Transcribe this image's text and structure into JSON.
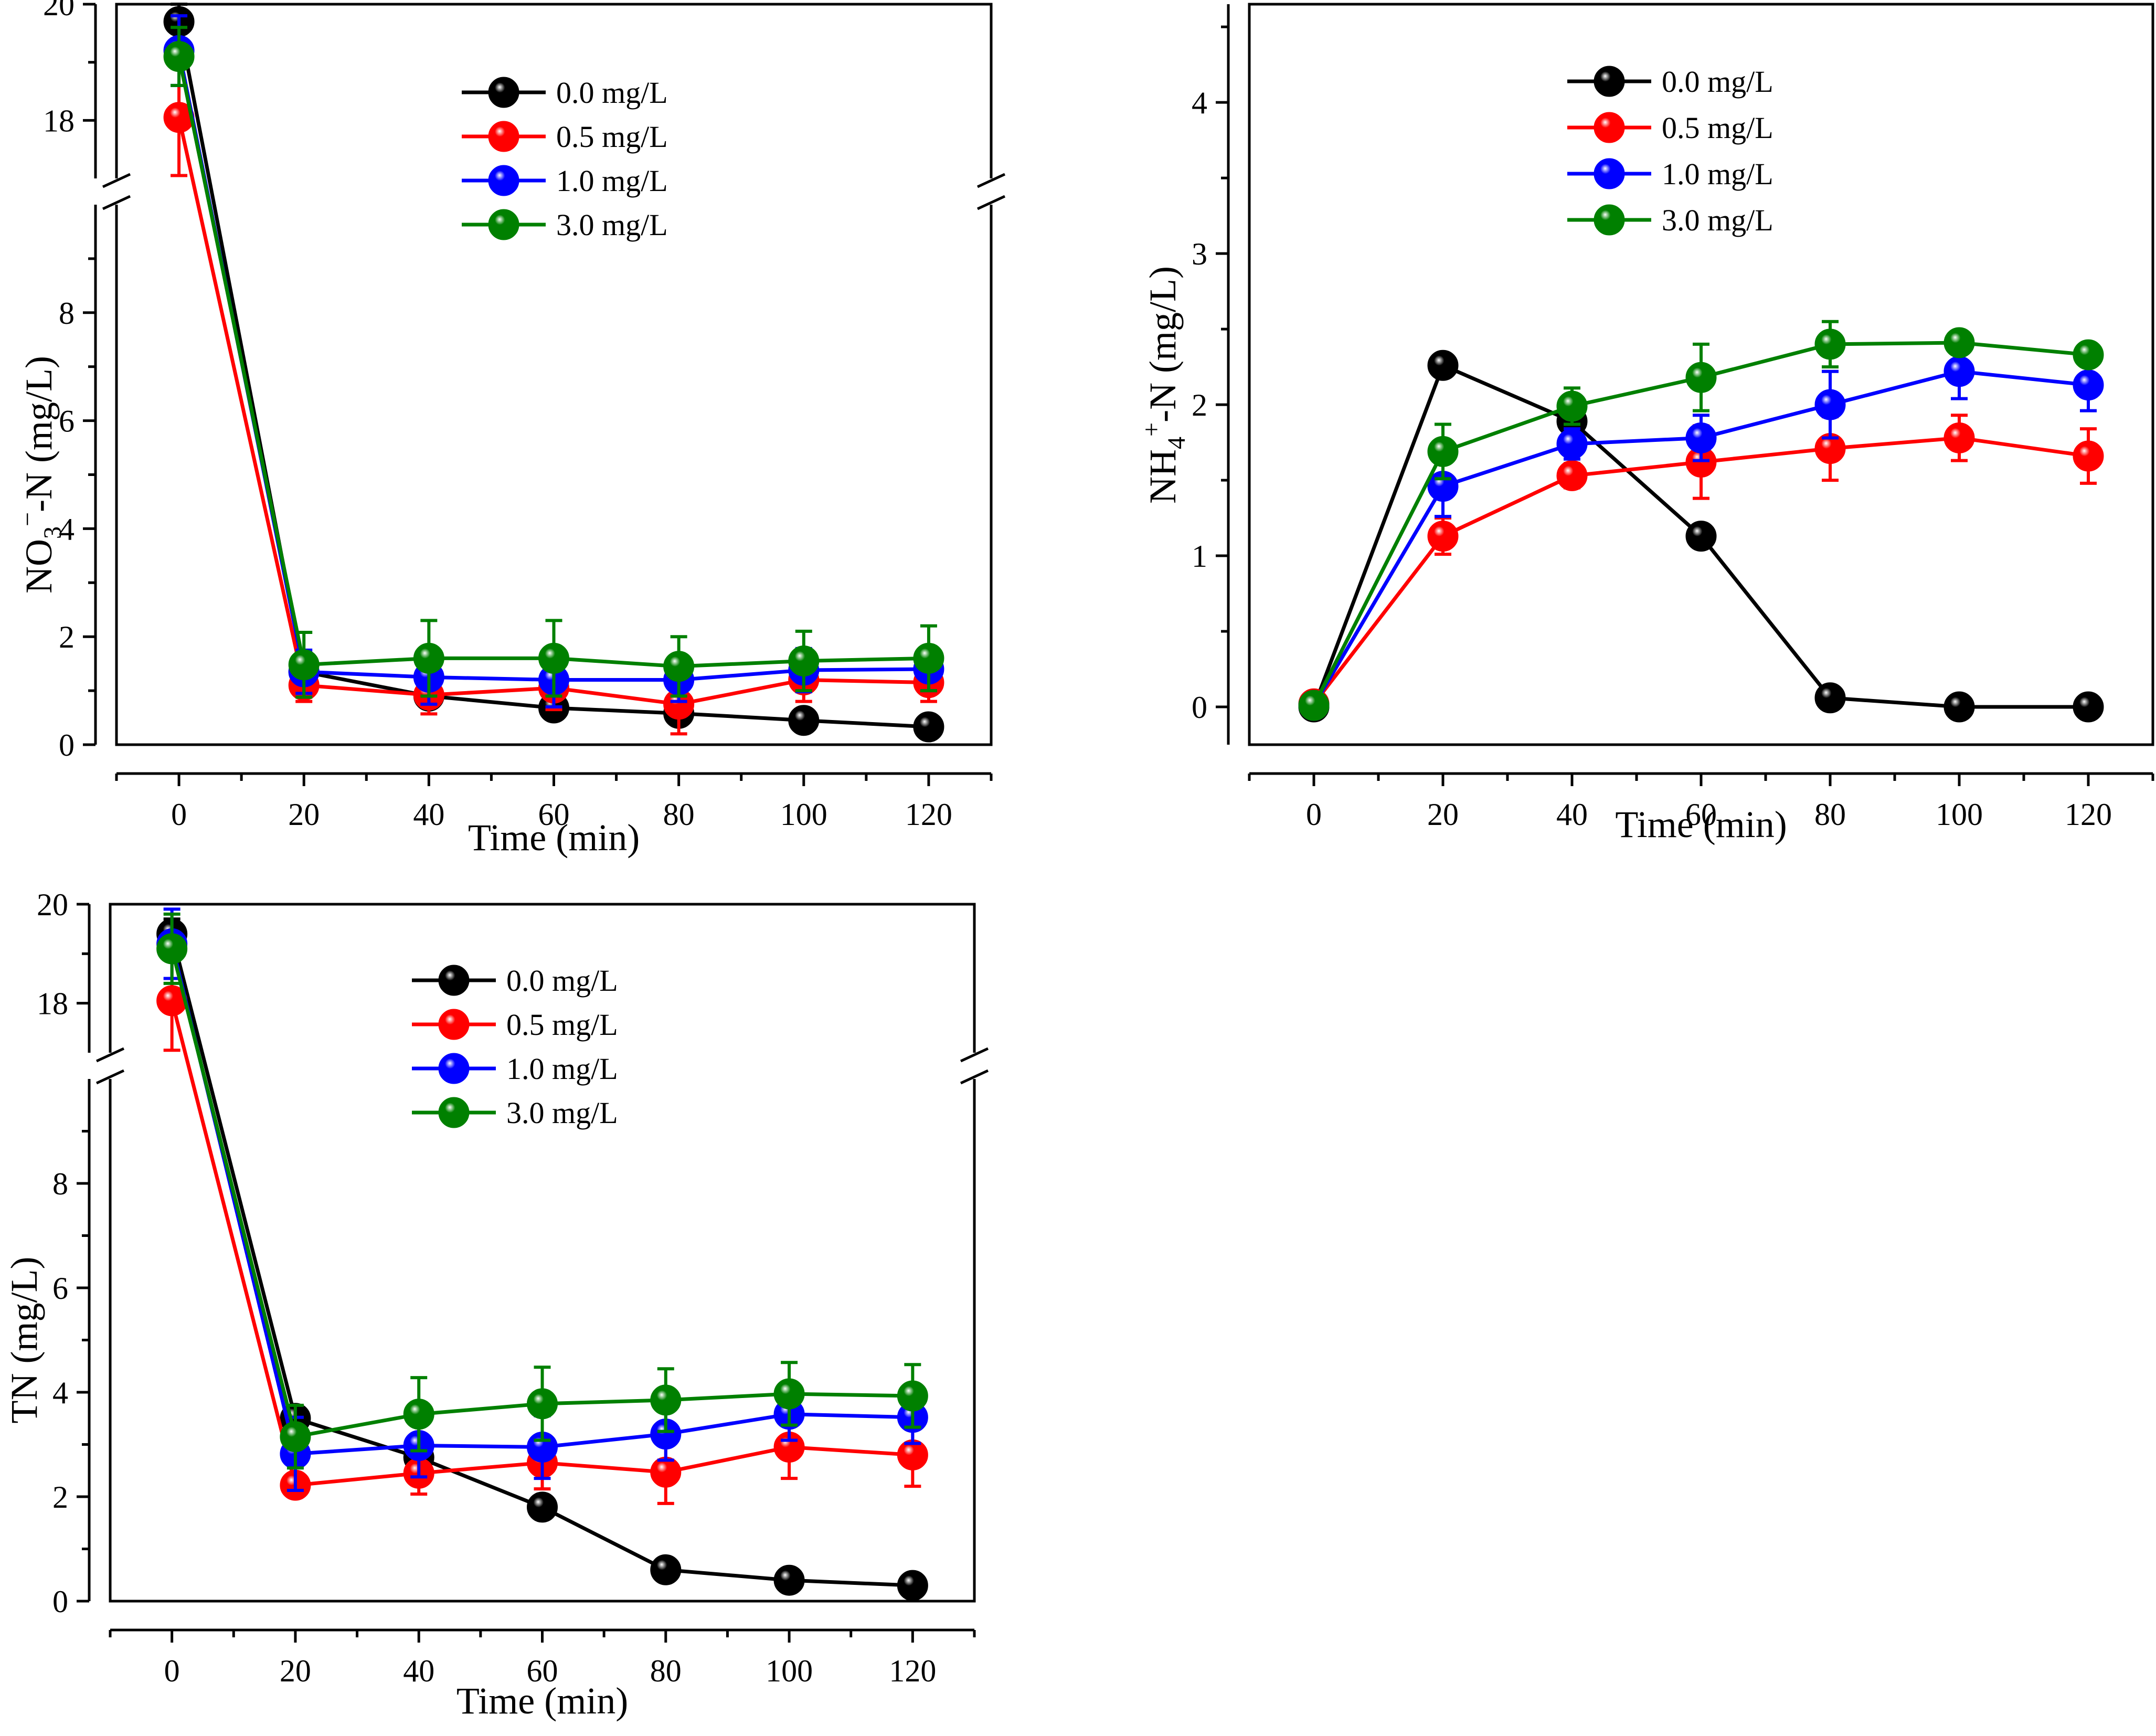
{
  "chart_data": [
    {
      "id": "no3",
      "type": "line",
      "title": "",
      "xlabel": "Time (min)",
      "ylabel_parts": [
        "NO",
        "3",
        "−",
        "-N (mg/L)"
      ],
      "broken_axis": true,
      "ylim_lower": [
        0,
        10
      ],
      "ylim_upper": [
        17,
        20
      ],
      "yticks_lower": [
        "0",
        "2",
        "4",
        "6",
        "8"
      ],
      "yticks_upper": [
        "18",
        "20"
      ],
      "xlim": [
        -10,
        130
      ],
      "xticks": [
        "0",
        "20",
        "40",
        "60",
        "80",
        "100",
        "120"
      ],
      "x": [
        0,
        20,
        40,
        60,
        80,
        100,
        120
      ],
      "legend_position": "top-center",
      "series": [
        {
          "name": "0.0 mg/L",
          "color": "#000000",
          "values": [
            19.7,
            1.35,
            0.9,
            0.68,
            0.58,
            0.45,
            0.33
          ],
          "errors": [
            0.3,
            0.1,
            0.1,
            0.1,
            0.1,
            0.1,
            0.1
          ]
        },
        {
          "name": "0.5 mg/L",
          "color": "#ff0000",
          "values": [
            18.05,
            1.1,
            0.92,
            1.05,
            0.75,
            1.2,
            1.15
          ],
          "errors": [
            1.0,
            0.3,
            0.35,
            0.4,
            0.55,
            0.4,
            0.35
          ]
        },
        {
          "name": "1.0 mg/L",
          "color": "#0000ff",
          "values": [
            19.2,
            1.35,
            1.25,
            1.2,
            1.2,
            1.38,
            1.4
          ],
          "errors": [
            0.6,
            0.4,
            0.5,
            0.5,
            0.4,
            0.4,
            0.4
          ]
        },
        {
          "name": "3.0 mg/L",
          "color": "#008000",
          "values": [
            19.1,
            1.48,
            1.6,
            1.6,
            1.45,
            1.55,
            1.6
          ],
          "errors": [
            0.5,
            0.6,
            0.7,
            0.7,
            0.55,
            0.55,
            0.6
          ]
        }
      ]
    },
    {
      "id": "nh4",
      "type": "line",
      "title": "",
      "xlabel": "Time (min)",
      "ylabel_parts": [
        "NH",
        "4",
        "+",
        "-N (mg/L)"
      ],
      "broken_axis": false,
      "ylim": [
        -0.25,
        4.65
      ],
      "yticks": [
        "0",
        "1",
        "2",
        "3",
        "4"
      ],
      "xlim": [
        -10,
        130
      ],
      "xticks": [
        "0",
        "20",
        "40",
        "60",
        "80",
        "100",
        "120"
      ],
      "x": [
        0,
        20,
        40,
        60,
        80,
        100,
        120
      ],
      "legend_position": "top-center",
      "series": [
        {
          "name": "0.0 mg/L",
          "color": "#000000",
          "values": [
            0.0,
            2.26,
            1.89,
            1.13,
            0.06,
            0.0,
            0.0
          ],
          "errors": [
            0.04,
            0.05,
            0.1,
            0.06,
            0.04,
            0.02,
            0.02
          ]
        },
        {
          "name": "0.5 mg/L",
          "color": "#ff0000",
          "values": [
            0.02,
            1.13,
            1.53,
            1.62,
            1.71,
            1.78,
            1.66
          ],
          "errors": [
            0.04,
            0.12,
            0.08,
            0.24,
            0.21,
            0.15,
            0.18
          ]
        },
        {
          "name": "1.0 mg/L",
          "color": "#0000ff",
          "values": [
            0.01,
            1.46,
            1.74,
            1.78,
            2.0,
            2.22,
            2.13
          ],
          "errors": [
            0.04,
            0.2,
            0.1,
            0.15,
            0.22,
            0.18,
            0.17
          ]
        },
        {
          "name": "3.0 mg/L",
          "color": "#008000",
          "values": [
            0.01,
            1.69,
            1.99,
            2.18,
            2.4,
            2.41,
            2.33
          ],
          "errors": [
            0.04,
            0.18,
            0.12,
            0.22,
            0.15,
            0.06,
            0.07
          ]
        }
      ]
    },
    {
      "id": "tn",
      "type": "line",
      "title": "",
      "xlabel": "Time (min)",
      "ylabel_parts": [
        "TN (mg/L)"
      ],
      "broken_axis": true,
      "ylim_lower": [
        0,
        10
      ],
      "ylim_upper": [
        17,
        20
      ],
      "yticks_lower": [
        "0",
        "2",
        "4",
        "6",
        "8"
      ],
      "yticks_upper": [
        "18",
        "20"
      ],
      "xlim": [
        -10,
        130
      ],
      "xticks": [
        "0",
        "20",
        "40",
        "60",
        "80",
        "100",
        "120"
      ],
      "x": [
        0,
        20,
        40,
        60,
        80,
        100,
        120
      ],
      "legend_position": "top-center",
      "series": [
        {
          "name": "0.0 mg/L",
          "color": "#000000",
          "values": [
            19.4,
            3.5,
            2.75,
            1.8,
            0.6,
            0.4,
            0.3
          ],
          "errors": [
            0.3,
            0.15,
            0.15,
            0.1,
            0.1,
            0.1,
            0.1
          ]
        },
        {
          "name": "0.5 mg/L",
          "color": "#ff0000",
          "values": [
            18.05,
            2.22,
            2.45,
            2.65,
            2.47,
            2.95,
            2.8
          ],
          "errors": [
            1.0,
            0.2,
            0.4,
            0.5,
            0.6,
            0.6,
            0.6
          ]
        },
        {
          "name": "1.0 mg/L",
          "color": "#0000ff",
          "values": [
            19.2,
            2.82,
            2.98,
            2.95,
            3.2,
            3.58,
            3.52
          ],
          "errors": [
            0.7,
            0.7,
            0.6,
            0.6,
            0.5,
            0.5,
            0.5
          ]
        },
        {
          "name": "3.0 mg/L",
          "color": "#008000",
          "values": [
            19.1,
            3.15,
            3.58,
            3.78,
            3.85,
            3.97,
            3.93
          ],
          "errors": [
            0.7,
            0.6,
            0.7,
            0.7,
            0.6,
            0.6,
            0.6
          ]
        }
      ]
    }
  ]
}
